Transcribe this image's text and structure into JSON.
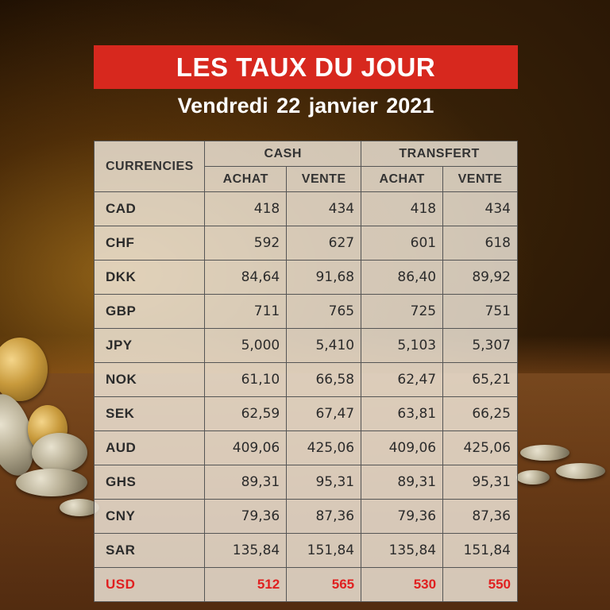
{
  "header": {
    "title": "LES TAUX DU JOUR",
    "date": "Vendredi 22  janvier  2021"
  },
  "table": {
    "currencies_header": "CURRENCIES",
    "groups": [
      "CASH",
      "TRANSFERT"
    ],
    "subheaders": [
      "ACHAT",
      "VENTE",
      "ACHAT",
      "VENTE"
    ],
    "rows": [
      {
        "code": "CAD",
        "cash_achat": "418",
        "cash_vente": "434",
        "transfert_achat": "418",
        "transfert_vente": "434"
      },
      {
        "code": "CHF",
        "cash_achat": "592",
        "cash_vente": "627",
        "transfert_achat": "601",
        "transfert_vente": "618"
      },
      {
        "code": "DKK",
        "cash_achat": "84,64",
        "cash_vente": "91,68",
        "transfert_achat": "86,40",
        "transfert_vente": "89,92"
      },
      {
        "code": "GBP",
        "cash_achat": "711",
        "cash_vente": "765",
        "transfert_achat": "725",
        "transfert_vente": "751"
      },
      {
        "code": "JPY",
        "cash_achat": "5,000",
        "cash_vente": "5,410",
        "transfert_achat": "5,103",
        "transfert_vente": "5,307"
      },
      {
        "code": "NOK",
        "cash_achat": "61,10",
        "cash_vente": "66,58",
        "transfert_achat": "62,47",
        "transfert_vente": "65,21"
      },
      {
        "code": "SEK",
        "cash_achat": "62,59",
        "cash_vente": "67,47",
        "transfert_achat": "63,81",
        "transfert_vente": "66,25"
      },
      {
        "code": "AUD",
        "cash_achat": "409,06",
        "cash_vente": "425,06",
        "transfert_achat": "409,06",
        "transfert_vente": "425,06"
      },
      {
        "code": "GHS",
        "cash_achat": "89,31",
        "cash_vente": "95,31",
        "transfert_achat": "89,31",
        "transfert_vente": "95,31"
      },
      {
        "code": "CNY",
        "cash_achat": "79,36",
        "cash_vente": "87,36",
        "transfert_achat": "79,36",
        "transfert_vente": "87,36"
      },
      {
        "code": "SAR",
        "cash_achat": "135,84",
        "cash_vente": "151,84",
        "transfert_achat": "135,84",
        "transfert_vente": "151,84"
      },
      {
        "code": "USD",
        "cash_achat": "512",
        "cash_vente": "565",
        "transfert_achat": "530",
        "transfert_vente": "550"
      }
    ]
  },
  "colors": {
    "title_bar": "#d7281e",
    "highlight_row_text": "#e02020"
  }
}
